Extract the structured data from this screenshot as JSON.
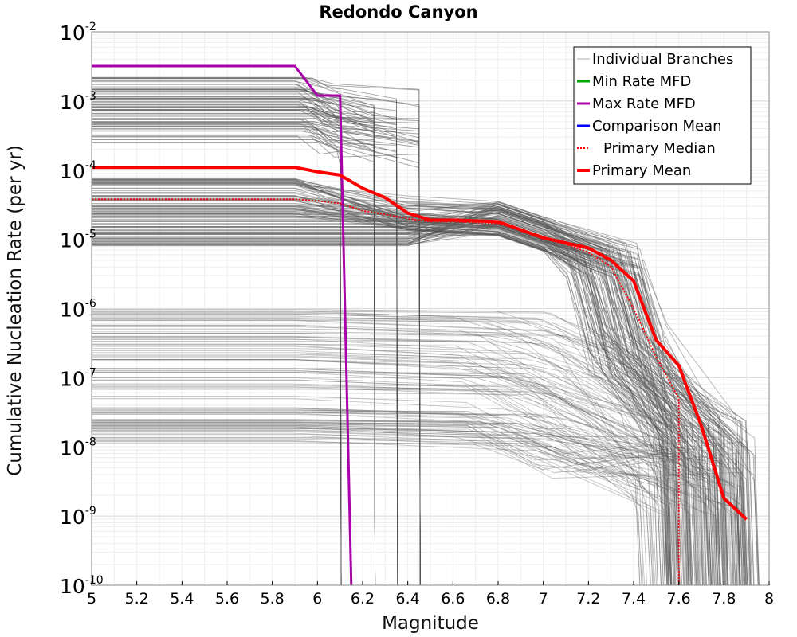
{
  "chart_data": {
    "type": "line",
    "title": "Redondo Canyon",
    "xlabel": "Magnitude",
    "ylabel": "Cumulative Nucleation Rate (per yr)",
    "xlim": [
      5,
      8
    ],
    "ylim": [
      1e-10,
      0.01
    ],
    "y_scale": "log",
    "grid": true,
    "legend_position": "top-right",
    "x_ticks": [
      "5",
      "5.2",
      "5.4",
      "5.6",
      "5.8",
      "6",
      "6.2",
      "6.4",
      "6.6",
      "6.8",
      "7",
      "7.2",
      "7.4",
      "7.6",
      "7.8",
      "8"
    ],
    "y_ticks": [
      {
        "base": "10",
        "exp": "-2"
      },
      {
        "base": "10",
        "exp": "-3"
      },
      {
        "base": "10",
        "exp": "-4"
      },
      {
        "base": "10",
        "exp": "-5"
      },
      {
        "base": "10",
        "exp": "-6"
      },
      {
        "base": "10",
        "exp": "-7"
      },
      {
        "base": "10",
        "exp": "-8"
      },
      {
        "base": "10",
        "exp": "-9"
      },
      {
        "base": "10",
        "exp": "-10"
      }
    ],
    "series": [
      {
        "name": "Individual Branches",
        "color": "#555555",
        "style": "thin"
      },
      {
        "name": "Min Rate MFD",
        "color": "#00aa00",
        "style": "solid",
        "x": [],
        "y": []
      },
      {
        "name": "Max Rate MFD",
        "color": "#aa00aa",
        "style": "solid",
        "x": [
          5.0,
          5.9,
          6.0,
          6.1,
          6.15
        ],
        "y": [
          0.0032,
          0.0032,
          0.0012,
          0.0012,
          1e-10
        ]
      },
      {
        "name": "Comparison Mean",
        "color": "#0000ff",
        "style": "solid",
        "x": [],
        "y": []
      },
      {
        "name": "Primary Median",
        "color": "#ff0000",
        "style": "dotted",
        "x": [
          5.0,
          5.9,
          6.0,
          6.1,
          6.2,
          6.3,
          6.4,
          6.5,
          6.6,
          6.8,
          7.0,
          7.2,
          7.3,
          7.4,
          7.5,
          7.6,
          7.6
        ],
        "y": [
          3.8e-05,
          3.8e-05,
          3.6e-05,
          3.3e-05,
          2.6e-05,
          2.3e-05,
          2e-05,
          1.8e-05,
          1.8e-05,
          1.7e-05,
          1.1e-05,
          6.5e-06,
          4e-06,
          1e-06,
          2e-07,
          5e-08,
          1e-10
        ]
      },
      {
        "name": "Primary Mean",
        "color": "#ff0000",
        "style": "thick",
        "x": [
          5.0,
          5.9,
          6.0,
          6.1,
          6.2,
          6.3,
          6.4,
          6.5,
          6.6,
          6.8,
          7.0,
          7.2,
          7.3,
          7.4,
          7.5,
          7.6,
          7.7,
          7.8,
          7.9
        ],
        "y": [
          0.00011,
          0.00011,
          9.5e-05,
          8.5e-05,
          5.5e-05,
          4e-05,
          2.4e-05,
          1.9e-05,
          1.9e-05,
          1.8e-05,
          1.05e-05,
          7.5e-06,
          5e-06,
          2.5e-06,
          3.5e-07,
          1.5e-07,
          2e-08,
          1.8e-09,
          9e-10
        ]
      }
    ]
  }
}
